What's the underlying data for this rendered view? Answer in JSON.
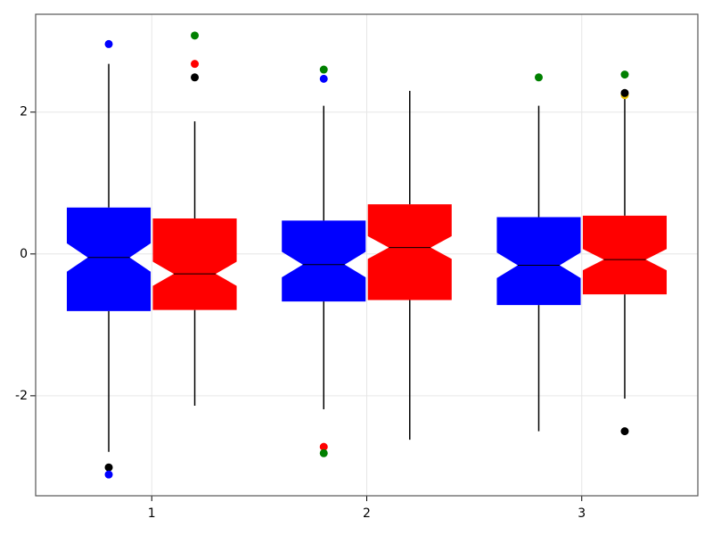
{
  "chart_data": {
    "type": "boxplot",
    "categories": [
      1,
      2,
      3
    ],
    "xlim": [
      0.46,
      3.54
    ],
    "xticks": [
      1,
      2,
      3
    ],
    "ylim": [
      -3.41,
      3.38
    ],
    "yticks": [
      -2,
      0,
      2
    ],
    "grid": true,
    "series": [
      {
        "color": "#0000ff",
        "q1": [
          -0.805,
          -0.67,
          -0.72
        ],
        "median": [
          -0.05,
          -0.15,
          -0.16
        ],
        "q3": [
          0.654,
          0.47,
          0.52
        ],
        "whisker_low": [
          -2.79,
          -2.19,
          -2.5
        ],
        "whisker_high": [
          2.68,
          2.09,
          2.09
        ],
        "notch": [
          0.2,
          0.18,
          0.18
        ],
        "outliers": [
          [
            {
              "value": 2.96,
              "color": "#0000ff"
            },
            {
              "value": -3.01,
              "color": "#000000"
            },
            {
              "value": -3.11,
              "color": "#0000ff"
            }
          ],
          [
            {
              "value": 2.6,
              "color": "#008000"
            },
            {
              "value": 2.47,
              "color": "#0000ff"
            },
            {
              "value": -2.72,
              "color": "#ff0000"
            },
            {
              "value": -2.81,
              "color": "#008000"
            }
          ],
          [
            {
              "value": 2.49,
              "color": "#008000"
            }
          ]
        ]
      },
      {
        "color": "#ff0000",
        "q1": [
          -0.79,
          -0.65,
          -0.57
        ],
        "median": [
          -0.28,
          0.09,
          -0.08
        ],
        "q3": [
          0.5,
          0.7,
          0.54
        ],
        "whisker_low": [
          -2.14,
          -2.62,
          -2.04
        ],
        "whisker_high": [
          1.87,
          2.3,
          2.2
        ],
        "notch": [
          0.17,
          0.16,
          0.15
        ],
        "outliers": [
          [
            {
              "value": 3.08,
              "color": "#008000"
            },
            {
              "value": 2.68,
              "color": "#ff0000"
            },
            {
              "value": 2.49,
              "color": "#000000"
            }
          ],
          [],
          [
            {
              "value": 2.53,
              "color": "#008000"
            },
            {
              "value": 2.24,
              "color": "#e6c200"
            },
            {
              "value": 2.27,
              "color": "#000000"
            },
            {
              "value": -2.5,
              "color": "#000000"
            }
          ]
        ]
      }
    ]
  }
}
